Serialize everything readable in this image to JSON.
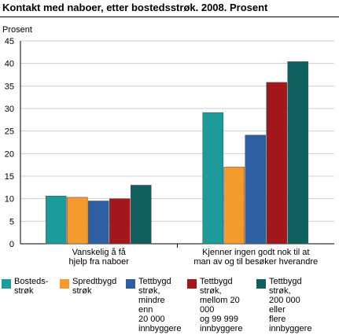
{
  "title": "Kontakt med naboer, etter bostedsstrøk. 2008. Prosent",
  "chart_data": {
    "type": "bar",
    "title": "Kontakt med naboer, etter bostedsstrøk. 2008. Prosent",
    "ylabel": "Prosent",
    "ylim": [
      0,
      45
    ],
    "yticks": [
      "0",
      "5",
      "10",
      "15",
      "20",
      "25",
      "30",
      "35",
      "40",
      "45"
    ],
    "grid": true,
    "legend_position": "bottom",
    "categories": [
      [
        "Vanskelig å få",
        "hjelp fra naboer"
      ],
      [
        "Kjenner ingen godt nok til at",
        "man av og til besøker hverandre"
      ]
    ],
    "series": [
      {
        "name": "Bosteds-\nstrøk",
        "color": "#1d9a9a",
        "values": [
          10.6,
          29.1
        ]
      },
      {
        "name": "Spredtbygd\nstrøk",
        "color": "#f59a2c",
        "values": [
          10.3,
          17.0
        ]
      },
      {
        "name": "Tettbygd\nstrøk,\nmindre enn\n20 000\ninnbyggere",
        "color": "#2e5fa3",
        "values": [
          9.5,
          24.1
        ]
      },
      {
        "name": "Tettbygd\nstrøk,\nmellom 20 000\nog 99 999\ninnbyggere",
        "color": "#a3161b",
        "values": [
          10.0,
          35.8
        ]
      },
      {
        "name": "Tettbygd strøk,\n200 000 eller\nflere innbyggere",
        "color": "#0f5f5f",
        "values": [
          13.0,
          40.4
        ]
      }
    ]
  }
}
